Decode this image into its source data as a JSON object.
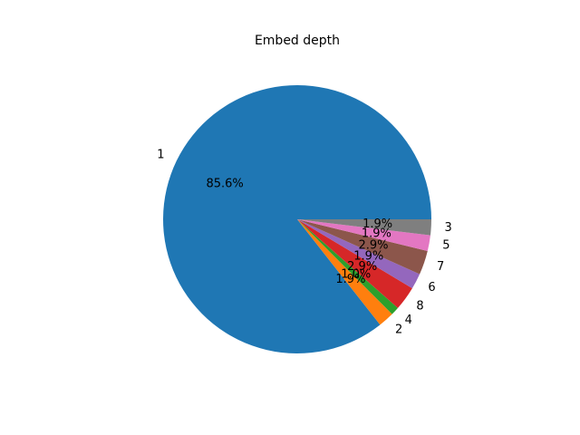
{
  "chart_data": {
    "type": "pie",
    "title": "Embed depth",
    "labels": [
      "1",
      "2",
      "4",
      "8",
      "6",
      "7",
      "5",
      "3"
    ],
    "values": [
      85.6,
      1.9,
      1.0,
      2.9,
      1.9,
      2.9,
      1.9,
      1.9
    ],
    "percent_labels": [
      "85.6%",
      "1.9%",
      "1.0%",
      "2.9%",
      "1.9%",
      "2.9%",
      "1.9%",
      "1.9%"
    ],
    "colors": [
      "#1f77b4",
      "#ff7f0e",
      "#2ca02c",
      "#d62728",
      "#9467bd",
      "#8c564b",
      "#e377c2",
      "#7f7f7f"
    ],
    "start_angle_deg": 0,
    "direction": "counterclockwise"
  }
}
